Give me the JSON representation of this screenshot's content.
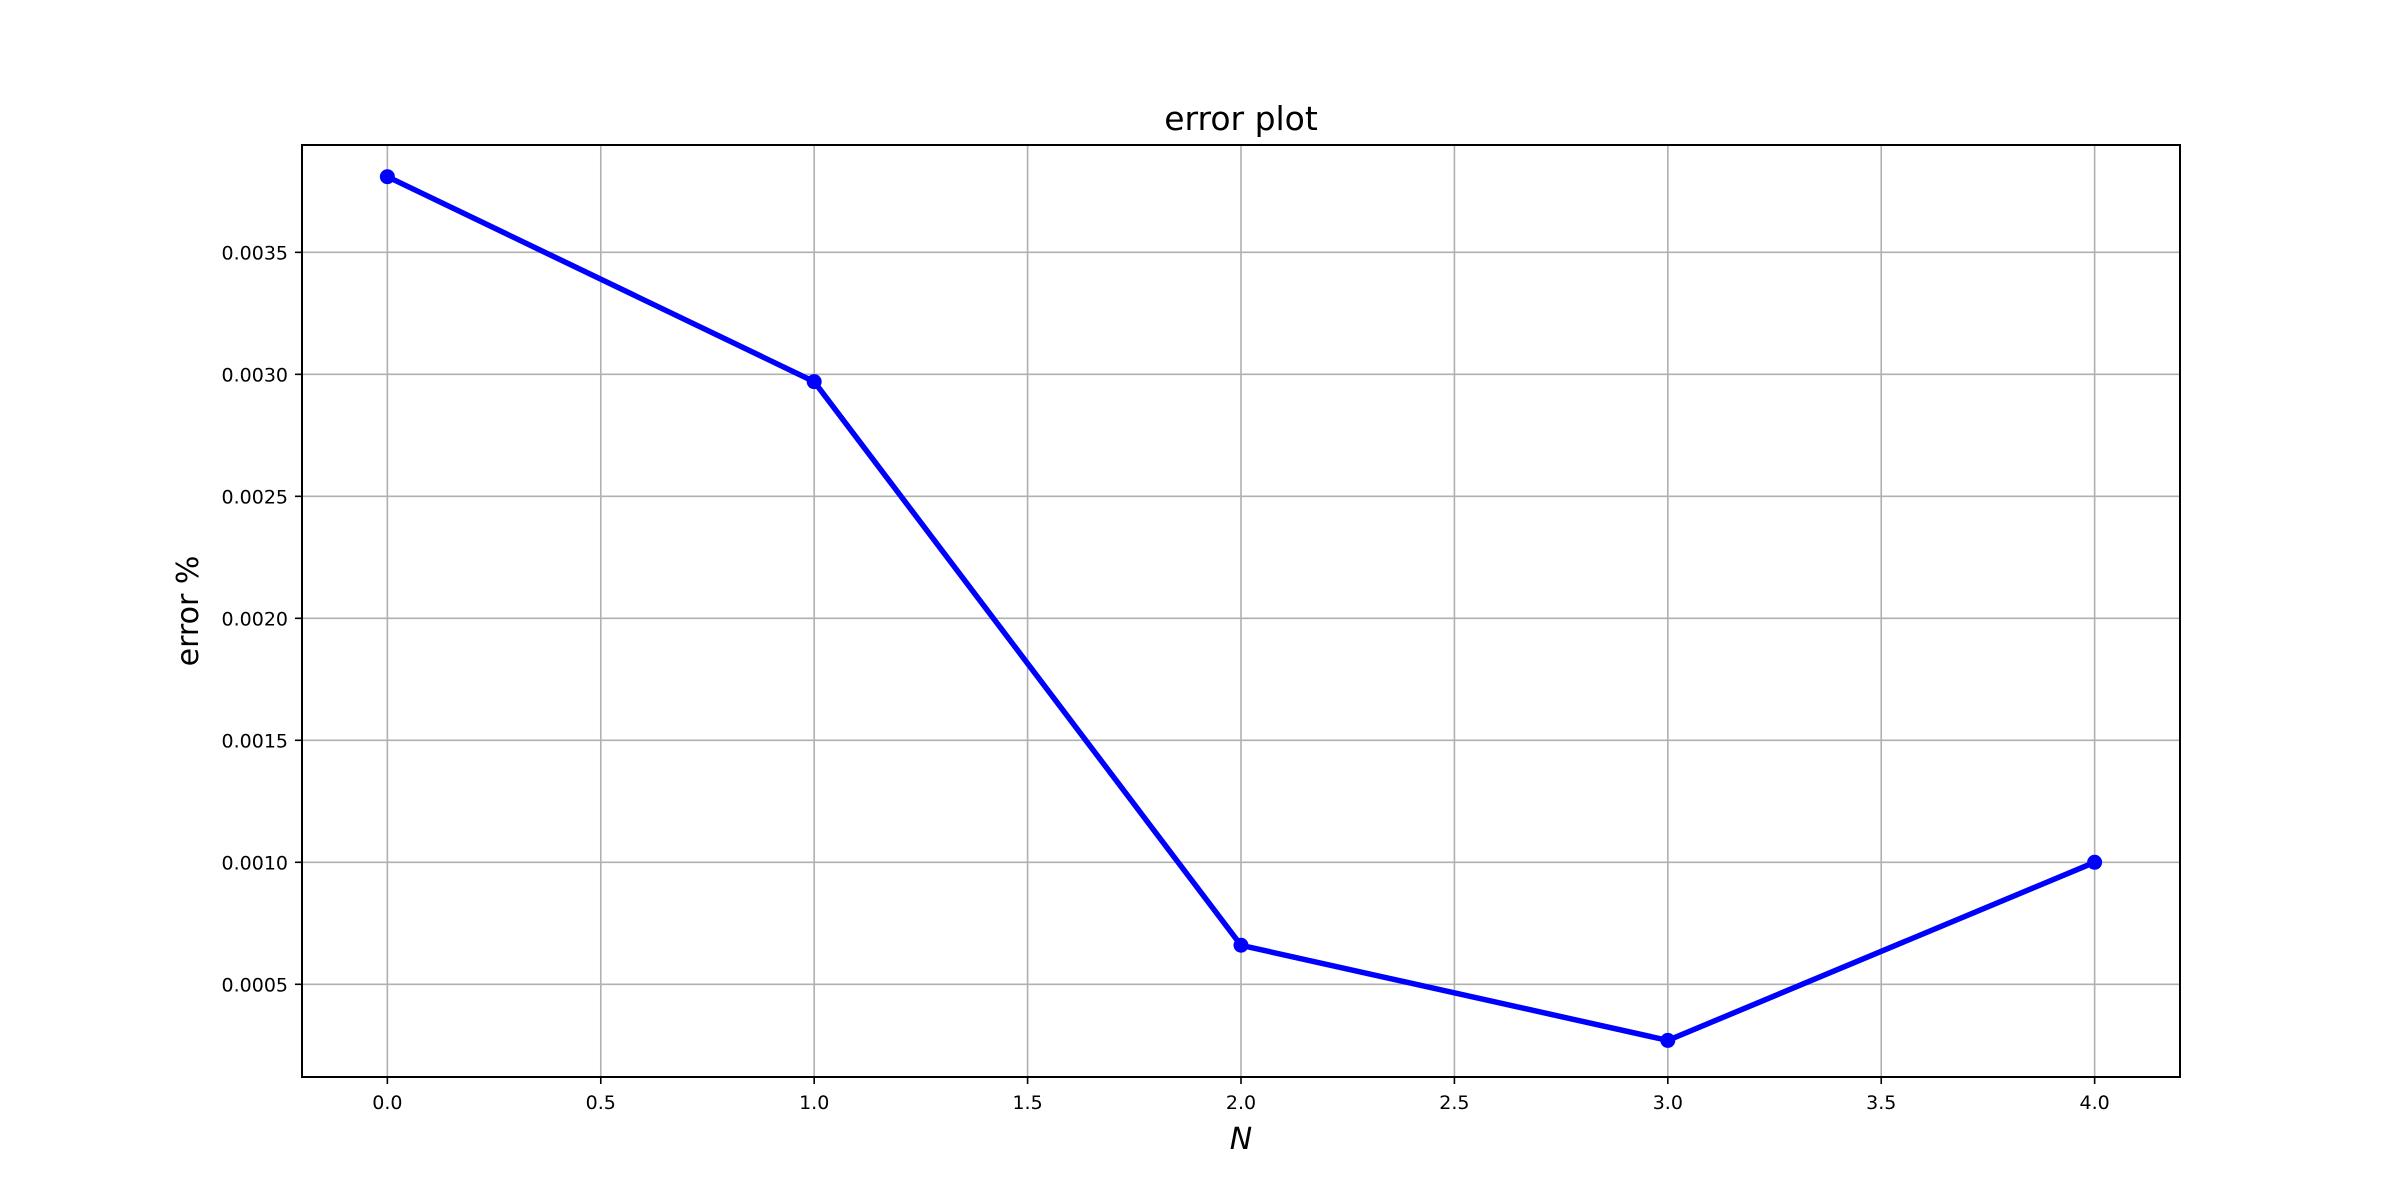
{
  "chart_data": {
    "type": "line",
    "title": "error plot",
    "xlabel": "N",
    "ylabel": "error %",
    "xlim": [
      -0.2,
      4.2
    ],
    "ylim": [
      0.00012,
      0.00394
    ],
    "xticks": [
      "0.0",
      "0.5",
      "1.0",
      "1.5",
      "2.0",
      "2.5",
      "3.0",
      "3.5",
      "4.0"
    ],
    "yticks": [
      "0.0005",
      "0.0010",
      "0.0015",
      "0.0020",
      "0.0025",
      "0.0030",
      "0.0035"
    ],
    "grid": true,
    "series": [
      {
        "x": [
          0,
          1,
          2,
          3,
          4
        ],
        "y": [
          0.00381,
          0.00297,
          0.00066,
          0.00027,
          0.001
        ],
        "color": "#0000ff",
        "marker": "circle"
      }
    ]
  }
}
